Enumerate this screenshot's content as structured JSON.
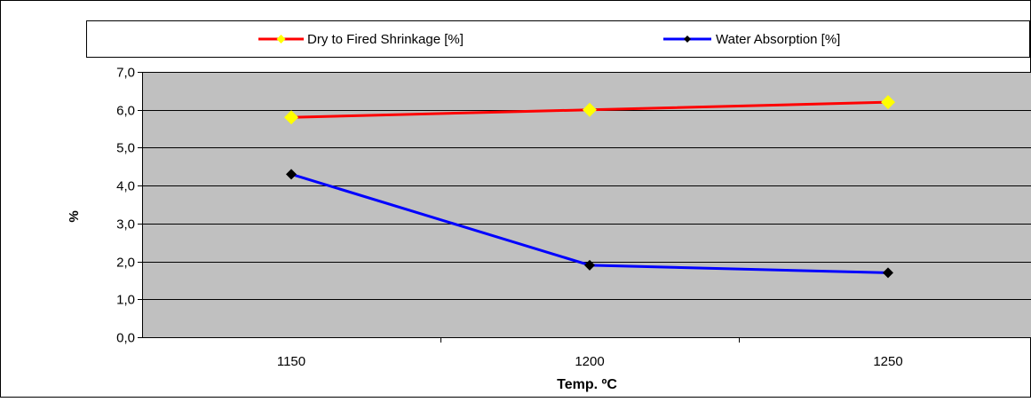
{
  "chart_data": {
    "type": "line",
    "categories": [
      "1150",
      "1200",
      "1250"
    ],
    "series": [
      {
        "name": "Dry to Fired Shrinkage [%]",
        "values": [
          5.8,
          6.0,
          6.2
        ],
        "line_color": "#ff0000",
        "marker_color": "#ffff00",
        "marker": "diamond"
      },
      {
        "name": "Water Absorption [%]",
        "values": [
          4.3,
          1.9,
          1.7
        ],
        "line_color": "#0000ff",
        "marker_color": "#000000",
        "marker": "diamond"
      }
    ],
    "xlabel": "Temp. ºC",
    "ylabel": "%",
    "ylim": [
      0,
      7
    ],
    "ytick_step": 1,
    "ytick_labels": [
      "0,0",
      "1,0",
      "2,0",
      "3,0",
      "4,0",
      "5,0",
      "6,0",
      "7,0"
    ],
    "grid": true,
    "legend_position": "top",
    "plot_background": "#c0c0c0"
  }
}
